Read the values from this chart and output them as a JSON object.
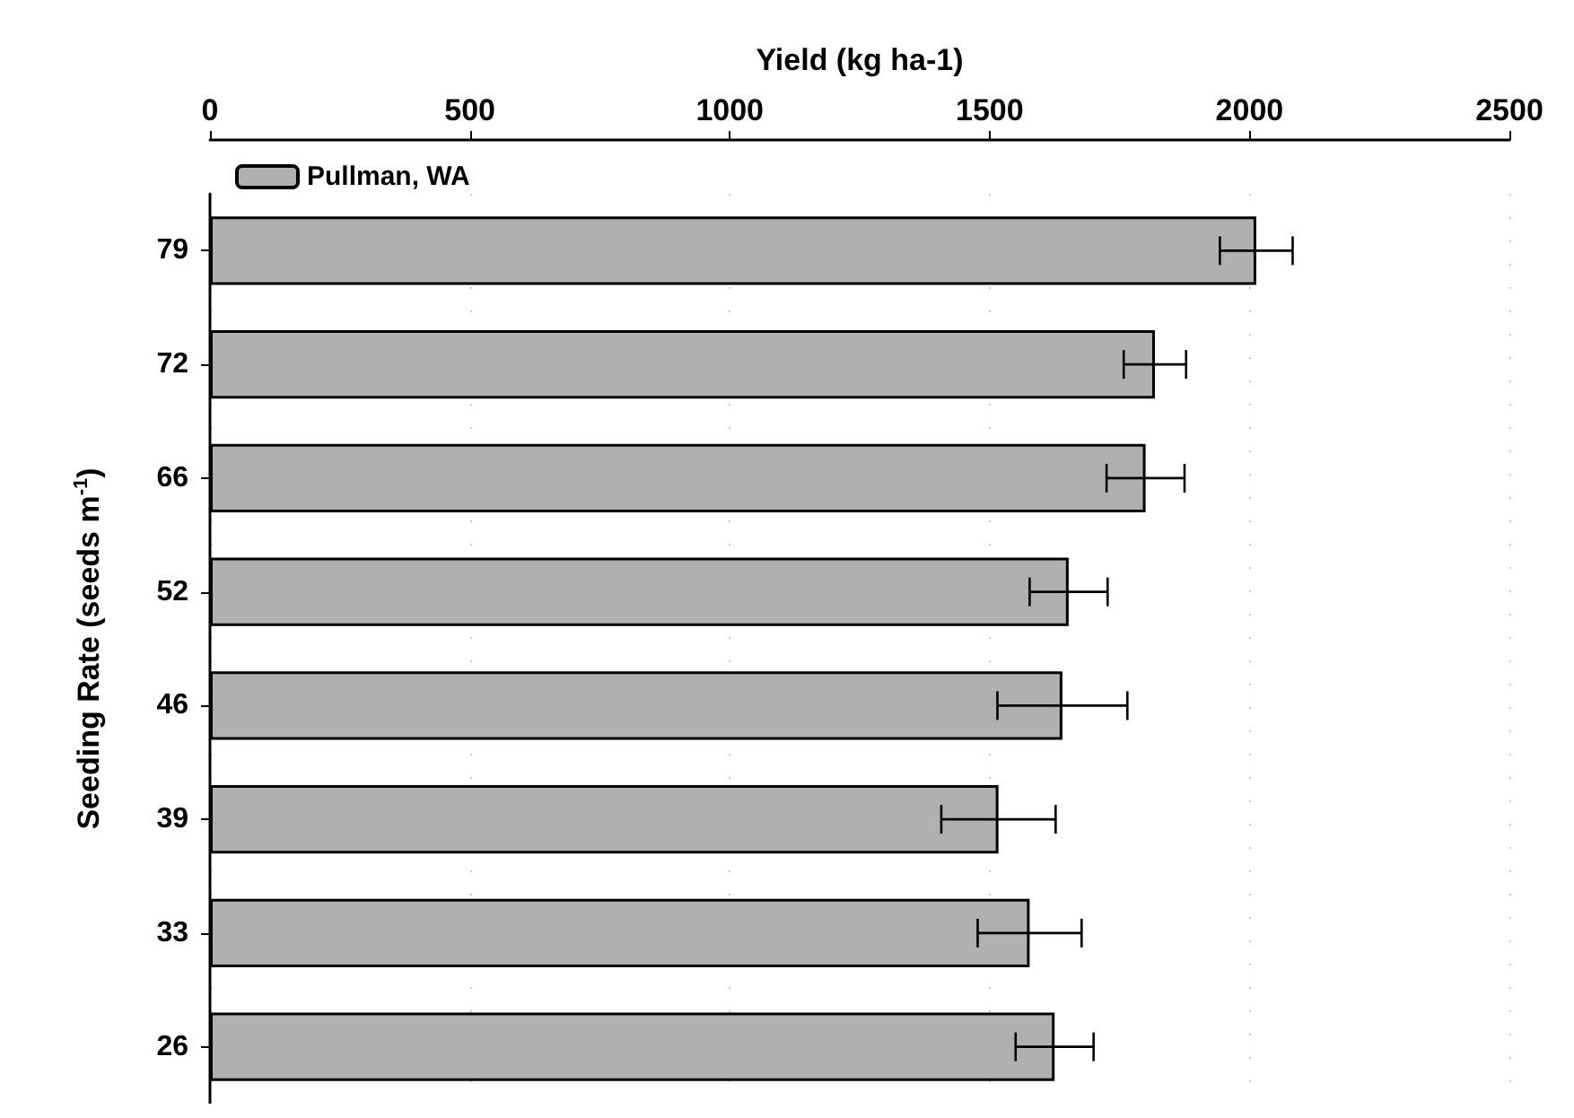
{
  "chart_data": {
    "type": "bar",
    "orientation": "horizontal",
    "xlabel": "Yield (kg ha-1)",
    "ylabel": "Seeding Rate (seeds m$^{-1}$)",
    "categories": [
      "79",
      "72",
      "66",
      "52",
      "46",
      "39",
      "33",
      "26"
    ],
    "series": [
      {
        "name": "Pullman, WA",
        "color": "#b0b0b0",
        "values": [
          2013,
          1818,
          1800,
          1652,
          1640,
          1517,
          1577,
          1625
        ],
        "errors": [
          70,
          60,
          75,
          75,
          125,
          110,
          100,
          75
        ]
      }
    ],
    "xlim": [
      0,
      2500
    ],
    "xticks": [
      0,
      500,
      1000,
      1500,
      2000,
      2500
    ],
    "grid": "x",
    "legend": "top left"
  }
}
